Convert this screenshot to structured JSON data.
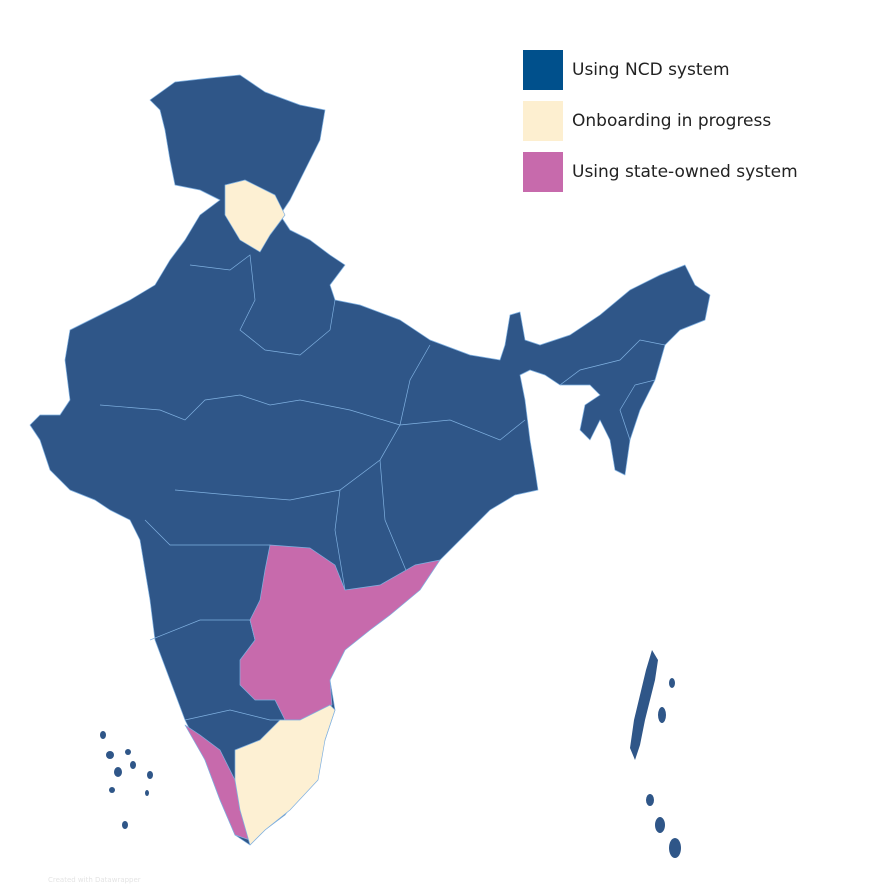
{
  "legend": {
    "items": [
      {
        "label": "Using NCD system",
        "color": "#00508c"
      },
      {
        "label": "Onboarding in progress",
        "color": "#fdefd0"
      },
      {
        "label": "Using state-owned system",
        "color": "#c76aac"
      }
    ]
  },
  "credit": "Created with Datawrapper"
}
